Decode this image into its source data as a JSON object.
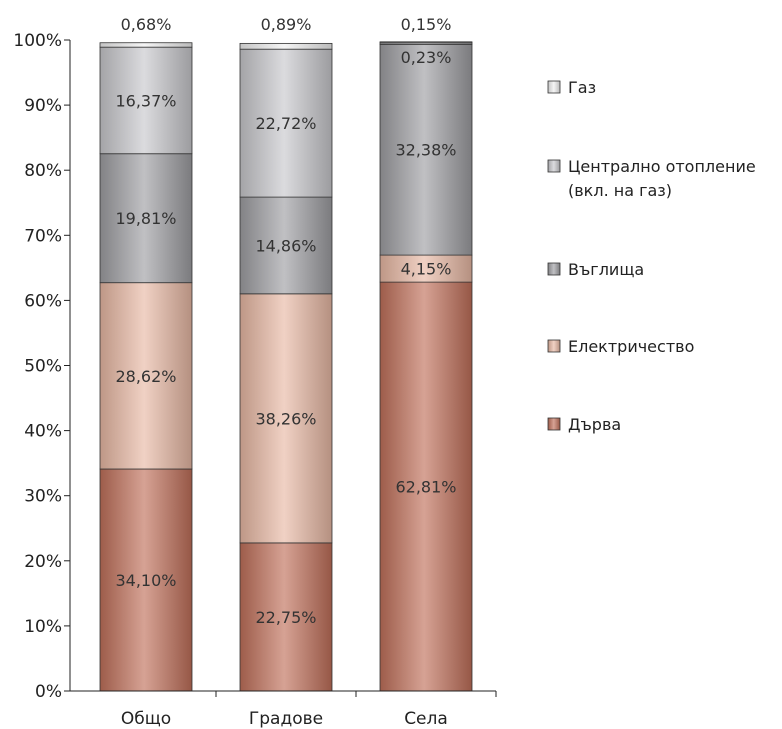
{
  "chart_data": {
    "type": "bar",
    "stacked": true,
    "categories": [
      "Общо",
      "Градове",
      "Села"
    ],
    "series": [
      {
        "name": "Дърва",
        "values": [
          34.1,
          22.75,
          62.81
        ],
        "labels": [
          "34,10%",
          "22,75%",
          "62,81%"
        ],
        "color": "#c0705a"
      },
      {
        "name": "Електричество",
        "values": [
          28.62,
          38.26,
          4.15
        ],
        "labels": [
          "28,62%",
          "38,26%",
          "4,15%"
        ],
        "color": "#e8b8a4"
      },
      {
        "name": "Въглища",
        "values": [
          19.81,
          14.86,
          32.38
        ],
        "labels": [
          "19,81%",
          "14,86%",
          "32,38%"
        ],
        "color": "#9e9ea2"
      },
      {
        "name": "Централно отопление (вкл. на газ)",
        "values": [
          16.37,
          22.72,
          0.23
        ],
        "labels": [
          "16,37%",
          "22,72%",
          "0,23%"
        ],
        "color": "#c8c8cc"
      },
      {
        "name": "Газ",
        "values": [
          0.68,
          0.89,
          0.15
        ],
        "labels": [
          "0,68%",
          "0,89%",
          "0,15%"
        ],
        "color": "#f0f0f0"
      }
    ],
    "legend": {
      "position": "right",
      "entries": [
        {
          "name": "Газ",
          "lines": [
            "Газ"
          ]
        },
        {
          "name": "Централно отопление (вкл. на газ)",
          "lines": [
            "Централно отопление",
            "(вкл. на газ)"
          ]
        },
        {
          "name": "Въглища",
          "lines": [
            "Въглища"
          ]
        },
        {
          "name": "Електричество",
          "lines": [
            "Електричество"
          ]
        },
        {
          "name": "Дърва",
          "lines": [
            "Дърва"
          ]
        }
      ]
    },
    "y_ticks": [
      "0%",
      "10%",
      "20%",
      "30%",
      "40%",
      "50%",
      "60%",
      "70%",
      "80%",
      "90%",
      "100%"
    ],
    "ylim": [
      0,
      100
    ],
    "grid": false
  }
}
